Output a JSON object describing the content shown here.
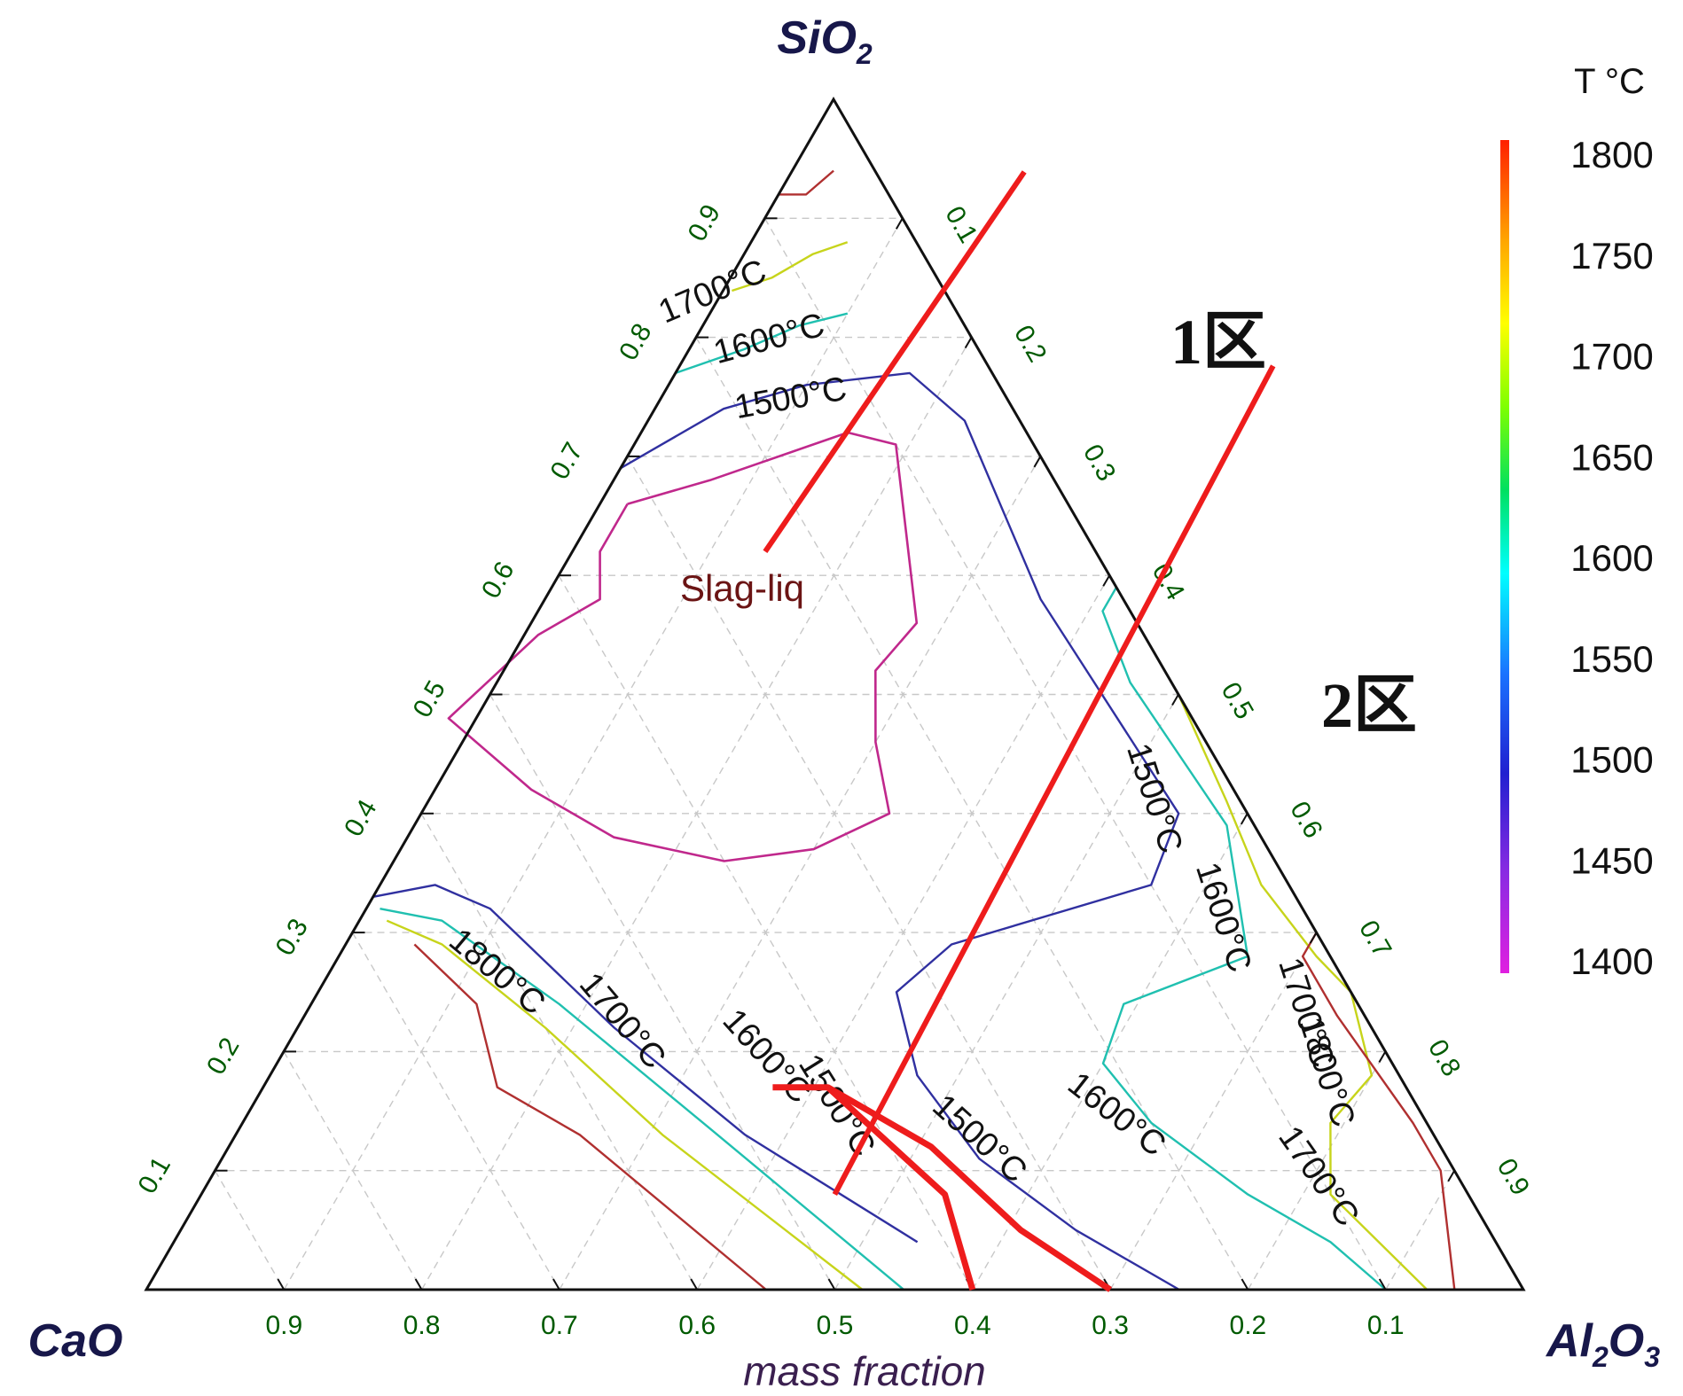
{
  "chart_data": {
    "type": "ternary contour diagram",
    "components": {
      "top": {
        "label": "SiO",
        "sub": "2"
      },
      "left": {
        "label": "CaO",
        "sub": ""
      },
      "right": {
        "label": "Al",
        "sub1": "2",
        "mid": "O",
        "sub2": "3"
      }
    },
    "axis_label": "mass fraction",
    "ticks": [
      "0.1",
      "0.2",
      "0.3",
      "0.4",
      "0.5",
      "0.6",
      "0.7",
      "0.8",
      "0.9"
    ],
    "bottom_ticks": [
      "0.9",
      "0.8",
      "0.7",
      "0.6",
      "0.5",
      "0.4",
      "0.3",
      "0.2",
      "0.1"
    ],
    "grid": true,
    "region_label": "Slag-liq",
    "zones": [
      {
        "label": "1区",
        "line_from": {
          "CaO": 0.24,
          "SiO2": 0.62,
          "Al2O3": 0.14
        },
        "line_to": {
          "CaO": 0.0,
          "SiO2": 0.84,
          "Al2O3": 0.16
        }
      },
      {
        "label": "2区",
        "line_from": {
          "CaO": 0.46,
          "SiO2": 0.08,
          "Al2O3": 0.46
        },
        "line_to": {
          "CaO": 0.0,
          "SiO2": 0.56,
          "Al2O3": 0.44
        }
      }
    ],
    "colorbar": {
      "title": "T °C",
      "min": 1400,
      "max": 1800,
      "ticks": [
        "1800",
        "1750",
        "1700",
        "1650",
        "1600",
        "1550",
        "1500",
        "1450",
        "1400"
      ],
      "gradient": [
        "#e020e0",
        "#8a2be2",
        "#2020d0",
        "#1a73ff",
        "#00ffff",
        "#00e060",
        "#7fff00",
        "#ffff00",
        "#ffa500",
        "#ff2000"
      ]
    },
    "isotherms": [
      {
        "label": "1700°C",
        "temp": 1700,
        "color": "#c7d41b",
        "points": [
          {
            "a": 0.16,
            "b": 0.85,
            "c": 0.0
          },
          {
            "a": 0.12,
            "b": 0.85,
            "c": 0.03
          },
          {
            "a": 0.08,
            "b": 0.87,
            "c": 0.05
          },
          {
            "a": 0.05,
            "b": 0.88,
            "c": 0.07
          }
        ]
      },
      {
        "label": "1800°C",
        "temp": 1800,
        "color": "#b03030",
        "points": [
          {
            "a": 0.08,
            "b": 0.92,
            "c": 0.0
          },
          {
            "a": 0.06,
            "b": 0.92,
            "c": 0.02
          },
          {
            "a": 0.03,
            "b": 0.94,
            "c": 0.03
          }
        ]
      },
      {
        "label": "1600°C",
        "temp": 1600,
        "color": "#20c0b0",
        "points": [
          {
            "a": 0.23,
            "b": 0.77,
            "c": 0.0
          },
          {
            "a": 0.17,
            "b": 0.79,
            "c": 0.04
          },
          {
            "a": 0.12,
            "b": 0.81,
            "c": 0.07
          },
          {
            "a": 0.08,
            "b": 0.82,
            "c": 0.1
          }
        ]
      },
      {
        "label": "1500°C",
        "temp": 1500,
        "color": "#3030a0",
        "points": [
          {
            "a": 0.31,
            "b": 0.69,
            "c": 0.0
          },
          {
            "a": 0.21,
            "b": 0.74,
            "c": 0.05
          },
          {
            "a": 0.14,
            "b": 0.76,
            "c": 0.1
          },
          {
            "a": 0.06,
            "b": 0.77,
            "c": 0.17
          },
          {
            "a": 0.04,
            "b": 0.73,
            "c": 0.23
          },
          {
            "a": 0.06,
            "b": 0.58,
            "c": 0.36
          },
          {
            "a": 0.05,
            "b": 0.4,
            "c": 0.55
          },
          {
            "a": 0.1,
            "b": 0.34,
            "c": 0.56
          },
          {
            "a": 0.27,
            "b": 0.29,
            "c": 0.44
          },
          {
            "a": 0.33,
            "b": 0.25,
            "c": 0.42
          },
          {
            "a": 0.35,
            "b": 0.18,
            "c": 0.47
          },
          {
            "a": 0.34,
            "b": 0.11,
            "c": 0.55
          },
          {
            "a": 0.3,
            "b": 0.05,
            "c": 0.65
          },
          {
            "a": 0.25,
            "b": 0.0,
            "c": 0.75
          }
        ]
      },
      {
        "label": "1600°C",
        "temp": 1600,
        "color": "#20c0b0",
        "points": [
          {
            "a": 0.0,
            "b": 0.59,
            "c": 0.41
          },
          {
            "a": 0.02,
            "b": 0.57,
            "c": 0.41
          },
          {
            "a": 0.03,
            "b": 0.51,
            "c": 0.46
          },
          {
            "a": 0.02,
            "b": 0.39,
            "c": 0.59
          },
          {
            "a": 0.06,
            "b": 0.28,
            "c": 0.66
          },
          {
            "a": 0.17,
            "b": 0.24,
            "c": 0.59
          },
          {
            "a": 0.21,
            "b": 0.19,
            "c": 0.6
          },
          {
            "a": 0.2,
            "b": 0.14,
            "c": 0.66
          },
          {
            "a": 0.16,
            "b": 0.08,
            "c": 0.76
          },
          {
            "a": 0.12,
            "b": 0.04,
            "c": 0.84
          },
          {
            "a": 0.1,
            "b": 0.0,
            "c": 0.9
          }
        ]
      },
      {
        "label": "1700°C",
        "temp": 1700,
        "color": "#c7d41b",
        "points": [
          {
            "a": 0.0,
            "b": 0.5,
            "c": 0.5
          },
          {
            "a": 0.01,
            "b": 0.41,
            "c": 0.58
          },
          {
            "a": 0.02,
            "b": 0.34,
            "c": 0.64
          },
          {
            "a": 0.01,
            "b": 0.28,
            "c": 0.71
          },
          {
            "a": 0.0,
            "b": 0.25,
            "c": 0.75
          },
          {
            "a": 0.02,
            "b": 0.18,
            "c": 0.8
          },
          {
            "a": 0.07,
            "b": 0.14,
            "c": 0.79
          },
          {
            "a": 0.1,
            "b": 0.08,
            "c": 0.82
          },
          {
            "a": 0.07,
            "b": 0.0,
            "c": 0.93
          }
        ]
      },
      {
        "label": "1800°C",
        "temp": 1800,
        "color": "#b03030",
        "points": [
          {
            "a": 0.0,
            "b": 0.3,
            "c": 0.7
          },
          {
            "a": 0.02,
            "b": 0.28,
            "c": 0.7
          },
          {
            "a": 0.02,
            "b": 0.23,
            "c": 0.75
          },
          {
            "a": 0.01,
            "b": 0.14,
            "c": 0.85
          },
          {
            "a": 0.01,
            "b": 0.1,
            "c": 0.89
          },
          {
            "a": 0.05,
            "b": 0.0,
            "c": 0.95
          }
        ]
      },
      {
        "label": "1500°C",
        "temp": 1500,
        "color": "#3030a0",
        "points": [
          {
            "a": 0.67,
            "b": 0.33,
            "c": 0.0
          },
          {
            "a": 0.62,
            "b": 0.34,
            "c": 0.04
          },
          {
            "a": 0.59,
            "b": 0.32,
            "c": 0.09
          },
          {
            "a": 0.55,
            "b": 0.22,
            "c": 0.23
          },
          {
            "a": 0.5,
            "b": 0.13,
            "c": 0.37
          },
          {
            "a": 0.42,
            "b": 0.04,
            "c": 0.54
          }
        ]
      },
      {
        "label": "1600°C",
        "temp": 1600,
        "color": "#20c0b0",
        "points": [
          {
            "a": 0.67,
            "b": 0.32,
            "c": 0.01
          },
          {
            "a": 0.63,
            "b": 0.31,
            "c": 0.06
          },
          {
            "a": 0.58,
            "b": 0.24,
            "c": 0.18
          },
          {
            "a": 0.52,
            "b": 0.13,
            "c": 0.35
          },
          {
            "a": 0.45,
            "b": 0.0,
            "c": 0.55
          }
        ]
      },
      {
        "label": "1700°C",
        "temp": 1700,
        "color": "#c7d41b",
        "points": [
          {
            "a": 0.67,
            "b": 0.31,
            "c": 0.02
          },
          {
            "a": 0.64,
            "b": 0.29,
            "c": 0.07
          },
          {
            "a": 0.6,
            "b": 0.22,
            "c": 0.18
          },
          {
            "a": 0.56,
            "b": 0.13,
            "c": 0.31
          },
          {
            "a": 0.48,
            "b": 0.0,
            "c": 0.52
          }
        ]
      },
      {
        "label": "1800°C",
        "temp": 1800,
        "color": "#b03030",
        "points": [
          {
            "a": 0.66,
            "b": 0.29,
            "c": 0.05
          },
          {
            "a": 0.64,
            "b": 0.24,
            "c": 0.12
          },
          {
            "a": 0.66,
            "b": 0.17,
            "c": 0.17
          },
          {
            "a": 0.62,
            "b": 0.13,
            "c": 0.25
          },
          {
            "a": 0.55,
            "b": 0.0,
            "c": 0.45
          }
        ]
      }
    ],
    "liquidus": {
      "color": "#c0288c",
      "points": [
        {
          "a": 0.32,
          "b": 0.66,
          "c": 0.02
        },
        {
          "a": 0.25,
          "b": 0.68,
          "c": 0.07
        },
        {
          "a": 0.13,
          "b": 0.72,
          "c": 0.15
        },
        {
          "a": 0.1,
          "b": 0.71,
          "c": 0.19
        },
        {
          "a": 0.16,
          "b": 0.56,
          "c": 0.28
        },
        {
          "a": 0.21,
          "b": 0.52,
          "c": 0.27
        },
        {
          "a": 0.24,
          "b": 0.46,
          "c": 0.3
        },
        {
          "a": 0.26,
          "b": 0.4,
          "c": 0.34
        },
        {
          "a": 0.33,
          "b": 0.37,
          "c": 0.3
        },
        {
          "a": 0.4,
          "b": 0.36,
          "c": 0.24
        },
        {
          "a": 0.47,
          "b": 0.38,
          "c": 0.15
        },
        {
          "a": 0.51,
          "b": 0.42,
          "c": 0.07
        },
        {
          "a": 0.54,
          "b": 0.48,
          "c": -0.02
        },
        {
          "a": 0.44,
          "b": 0.55,
          "c": 0.01
        },
        {
          "a": 0.38,
          "b": 0.58,
          "c": 0.04
        },
        {
          "a": 0.36,
          "b": 0.62,
          "c": 0.02
        },
        {
          "a": 0.32,
          "b": 0.66,
          "c": 0.02
        }
      ]
    },
    "isotherm_labels": [
      {
        "text": "1700°C",
        "a": 0.17,
        "b": 0.83,
        "c": 0.0,
        "rot": -23
      },
      {
        "text": "1600°C",
        "a": 0.15,
        "b": 0.79,
        "c": 0.06,
        "rot": -15
      },
      {
        "text": "1500°C",
        "a": 0.16,
        "b": 0.74,
        "c": 0.1,
        "rot": -10
      },
      {
        "text": "1500°C",
        "a": 0.07,
        "b": 0.41,
        "c": 0.52,
        "rot": 72
      },
      {
        "text": "1600°C",
        "a": 0.07,
        "b": 0.31,
        "c": 0.62,
        "rot": 72
      },
      {
        "text": "1700°C",
        "a": 0.05,
        "b": 0.23,
        "c": 0.72,
        "rot": 72
      },
      {
        "text": "1800°C",
        "a": 0.06,
        "b": 0.18,
        "c": 0.76,
        "rot": 72
      },
      {
        "text": "1700°C",
        "a": 0.11,
        "b": 0.09,
        "c": 0.8,
        "rot": 55
      },
      {
        "text": "1600°C",
        "a": 0.23,
        "b": 0.14,
        "c": 0.63,
        "rot": 38
      },
      {
        "text": "1500°C",
        "a": 0.34,
        "b": 0.12,
        "c": 0.54,
        "rot": 42
      },
      {
        "text": "1500°C",
        "a": 0.43,
        "b": 0.15,
        "c": 0.42,
        "rot": 58
      },
      {
        "text": "1600°C",
        "a": 0.46,
        "b": 0.19,
        "c": 0.35,
        "rot": 48
      },
      {
        "text": "1700°C",
        "a": 0.55,
        "b": 0.22,
        "c": 0.23,
        "rot": 50
      },
      {
        "text": "1800°C",
        "a": 0.62,
        "b": 0.26,
        "c": 0.12,
        "rot": 40
      }
    ],
    "red_boundary": {
      "color": "#ee1c1c",
      "segments": [
        [
          {
            "a": 0.46,
            "b": 0.17,
            "c": 0.37
          },
          {
            "a": 0.42,
            "b": 0.17,
            "c": 0.41
          },
          {
            "a": 0.38,
            "b": 0.08,
            "c": 0.54
          },
          {
            "a": 0.4,
            "b": 0.0,
            "c": 0.6
          }
        ],
        [
          {
            "a": 0.42,
            "b": 0.17,
            "c": 0.41
          },
          {
            "a": 0.37,
            "b": 0.12,
            "c": 0.51
          },
          {
            "a": 0.34,
            "b": 0.05,
            "c": 0.61
          },
          {
            "a": 0.3,
            "b": 0.0,
            "c": 0.7
          }
        ]
      ]
    }
  }
}
